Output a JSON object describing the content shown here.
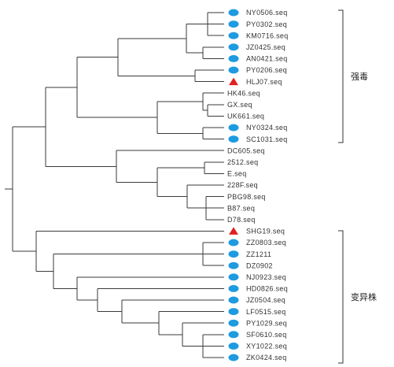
{
  "colors": {
    "branch": "#3a3a3a",
    "circle_marker": "#1e9be0",
    "triangle_marker": "#e02020",
    "label_text": "#333333"
  },
  "groups": [
    {
      "label": "强毒",
      "first_leaf": 0,
      "last_leaf": 11
    },
    {
      "label": "变异株",
      "first_leaf": 19,
      "last_leaf": 30
    }
  ],
  "leaves": [
    {
      "label": "NY0506.seq",
      "marker": "circle"
    },
    {
      "label": "PY0302.seq",
      "marker": "circle"
    },
    {
      "label": "KM0716.seq",
      "marker": "circle"
    },
    {
      "label": "JZ0425.seq",
      "marker": "circle"
    },
    {
      "label": "AN0421.seq",
      "marker": "circle"
    },
    {
      "label": "PY0206.seq",
      "marker": "circle"
    },
    {
      "label": "HLJ07.seq",
      "marker": "triangle"
    },
    {
      "label": "HK46.seq",
      "marker": "none"
    },
    {
      "label": "GX.seq",
      "marker": "none"
    },
    {
      "label": "UK661.seq",
      "marker": "none"
    },
    {
      "label": "NY0324.seq",
      "marker": "circle"
    },
    {
      "label": "SC1031.seq",
      "marker": "circle"
    },
    {
      "label": "DC605.seq",
      "marker": "none"
    },
    {
      "label": "2512.seq",
      "marker": "none"
    },
    {
      "label": "E.seq",
      "marker": "none"
    },
    {
      "label": "228F.seq",
      "marker": "none"
    },
    {
      "label": "PBG98.seq",
      "marker": "none"
    },
    {
      "label": "B87.seq",
      "marker": "none"
    },
    {
      "label": "D78.seq",
      "marker": "none"
    },
    {
      "label": "SHG19.seq",
      "marker": "triangle"
    },
    {
      "label": "ZZ0803.seq",
      "marker": "circle"
    },
    {
      "label": "ZZ1211",
      "marker": "circle"
    },
    {
      "label": "DZ0902",
      "marker": "circle"
    },
    {
      "label": "NJ0923.seq",
      "marker": "circle"
    },
    {
      "label": "HD0826.seq",
      "marker": "circle"
    },
    {
      "label": "JZ0504.seq",
      "marker": "circle"
    },
    {
      "label": "LF0515.seq",
      "marker": "circle"
    },
    {
      "label": "PY1029.seq",
      "marker": "circle"
    },
    {
      "label": "SF0610.seq",
      "marker": "circle"
    },
    {
      "label": "XY1022.seq",
      "marker": "circle"
    },
    {
      "label": "ZK0424.seq",
      "marker": "circle"
    }
  ]
}
